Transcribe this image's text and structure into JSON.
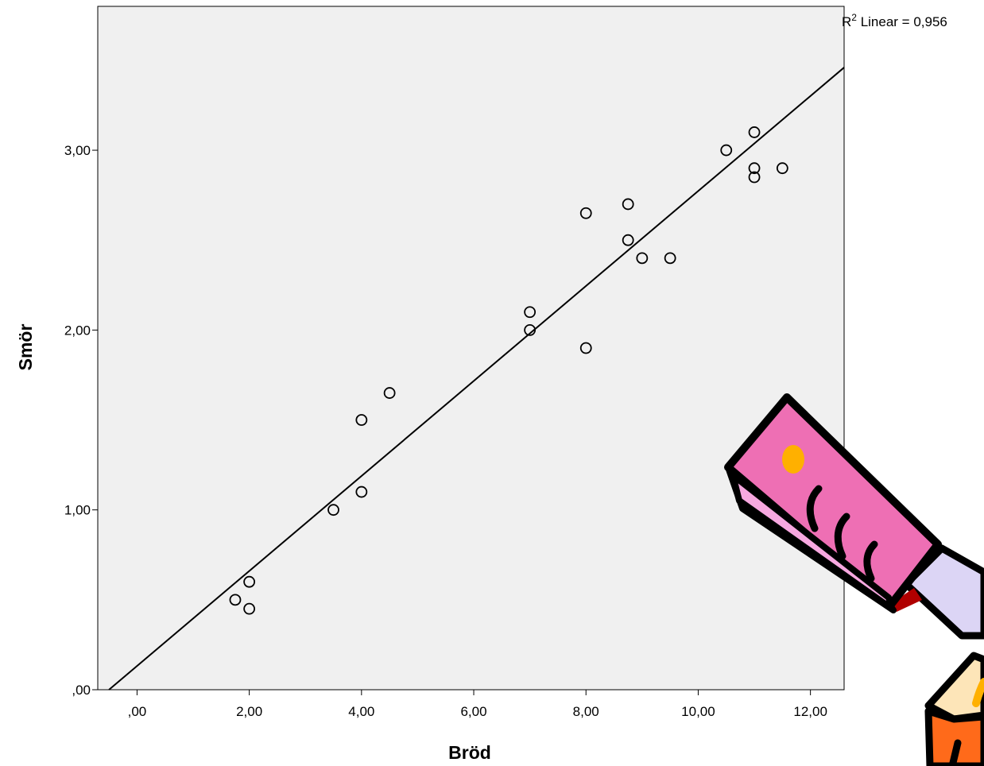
{
  "chart_data": {
    "type": "scatter",
    "xlabel": "Bröd",
    "ylabel": "Smör",
    "xlim": [
      -0.7,
      12.6
    ],
    "ylim": [
      0,
      3.8
    ],
    "x_ticks": [
      0,
      2,
      4,
      6,
      8,
      10,
      12
    ],
    "x_tick_labels": [
      ",00",
      "2,00",
      "4,00",
      "6,00",
      "8,00",
      "10,00",
      "12,00"
    ],
    "y_ticks": [
      0,
      1,
      2,
      3
    ],
    "y_tick_labels": [
      ",00",
      "1,00",
      "2,00",
      "3,00"
    ],
    "grid": false,
    "points": [
      {
        "x": 1.75,
        "y": 0.5
      },
      {
        "x": 2.0,
        "y": 0.6
      },
      {
        "x": 2.0,
        "y": 0.45
      },
      {
        "x": 3.5,
        "y": 1.0
      },
      {
        "x": 4.0,
        "y": 1.5
      },
      {
        "x": 4.0,
        "y": 1.1
      },
      {
        "x": 4.5,
        "y": 1.65
      },
      {
        "x": 7.0,
        "y": 2.1
      },
      {
        "x": 7.0,
        "y": 2.0
      },
      {
        "x": 8.0,
        "y": 2.65
      },
      {
        "x": 8.0,
        "y": 1.9
      },
      {
        "x": 8.75,
        "y": 2.7
      },
      {
        "x": 8.75,
        "y": 2.5
      },
      {
        "x": 9.0,
        "y": 2.4
      },
      {
        "x": 9.5,
        "y": 2.4
      },
      {
        "x": 10.5,
        "y": 3.0
      },
      {
        "x": 11.0,
        "y": 3.1
      },
      {
        "x": 11.0,
        "y": 2.9
      },
      {
        "x": 11.0,
        "y": 2.85
      },
      {
        "x": 11.5,
        "y": 2.9
      }
    ],
    "fit_line": {
      "x": [
        -0.5,
        12.6
      ],
      "y": [
        0.0,
        3.46
      ]
    },
    "fit_label": {
      "prefix": "R",
      "superscript": "2",
      "text": " Linear = 0,956"
    }
  },
  "colors": {
    "plot_background": "#f0f0f0",
    "marker_stroke": "#000000",
    "line": "#000000",
    "clipart_pink": "#ee6fb4",
    "clipart_light_pink": "#f7a8e0",
    "clipart_yellow": "#ffb000",
    "clipart_lavender": "#dcd5f5",
    "clipart_cream": "#fde5b8",
    "clipart_orange": "#ff6a1a",
    "clipart_dark_red": "#b00000"
  },
  "decoration": {
    "icon": "knife-clipart-icon"
  }
}
